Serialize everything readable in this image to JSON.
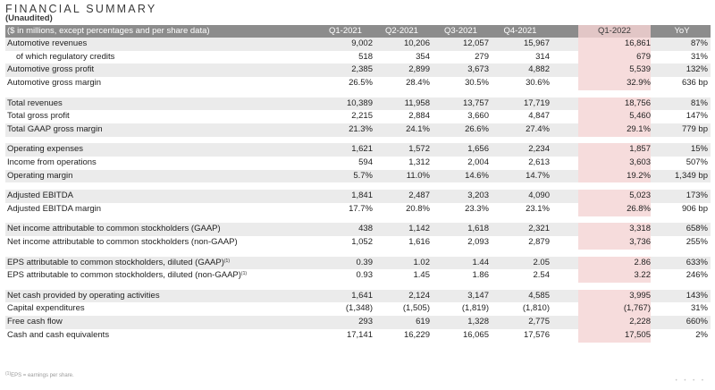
{
  "title": "FINANCIAL SUMMARY",
  "subtitle": "(Unaudited)",
  "header": {
    "label": "($ in millions, except percentages and per share data)",
    "columns": [
      "Q1-2021",
      "Q2-2021",
      "Q3-2021",
      "Q4-2021",
      "Q1-2022",
      "YoY"
    ]
  },
  "rows": [
    {
      "type": "data",
      "shade": true,
      "label": "Automotive revenues",
      "values": [
        "9,002",
        "10,206",
        "12,057",
        "15,967",
        "16,861",
        "87%"
      ]
    },
    {
      "type": "data",
      "shade": false,
      "indent": true,
      "label": "of which regulatory credits",
      "values": [
        "518",
        "354",
        "279",
        "314",
        "679",
        "31%"
      ]
    },
    {
      "type": "data",
      "shade": true,
      "label": "Automotive gross profit",
      "values": [
        "2,385",
        "2,899",
        "3,673",
        "4,882",
        "5,539",
        "132%"
      ]
    },
    {
      "type": "data",
      "shade": false,
      "label": "Automotive gross margin",
      "values": [
        "26.5%",
        "28.4%",
        "30.5%",
        "30.6%",
        "32.9%",
        "636 bp"
      ]
    },
    {
      "type": "spacer"
    },
    {
      "type": "data",
      "shade": true,
      "label": "Total revenues",
      "values": [
        "10,389",
        "11,958",
        "13,757",
        "17,719",
        "18,756",
        "81%"
      ]
    },
    {
      "type": "data",
      "shade": false,
      "label": "Total gross profit",
      "values": [
        "2,215",
        "2,884",
        "3,660",
        "4,847",
        "5,460",
        "147%"
      ]
    },
    {
      "type": "data",
      "shade": true,
      "label": "Total GAAP gross margin",
      "values": [
        "21.3%",
        "24.1%",
        "26.6%",
        "27.4%",
        "29.1%",
        "779 bp"
      ]
    },
    {
      "type": "spacer"
    },
    {
      "type": "data",
      "shade": true,
      "label": "Operating expenses",
      "values": [
        "1,621",
        "1,572",
        "1,656",
        "2,234",
        "1,857",
        "15%"
      ]
    },
    {
      "type": "data",
      "shade": false,
      "label": "Income from operations",
      "values": [
        "594",
        "1,312",
        "2,004",
        "2,613",
        "3,603",
        "507%"
      ]
    },
    {
      "type": "data",
      "shade": true,
      "label": "Operating margin",
      "values": [
        "5.7%",
        "11.0%",
        "14.6%",
        "14.7%",
        "19.2%",
        "1,349 bp"
      ]
    },
    {
      "type": "spacer"
    },
    {
      "type": "data",
      "shade": true,
      "label": "Adjusted EBITDA",
      "values": [
        "1,841",
        "2,487",
        "3,203",
        "4,090",
        "5,023",
        "173%"
      ]
    },
    {
      "type": "data",
      "shade": false,
      "label": "Adjusted EBITDA margin",
      "values": [
        "17.7%",
        "20.8%",
        "23.3%",
        "23.1%",
        "26.8%",
        "906 bp"
      ]
    },
    {
      "type": "spacer"
    },
    {
      "type": "data",
      "shade": true,
      "label": "Net income attributable to common stockholders (GAAP)",
      "values": [
        "438",
        "1,142",
        "1,618",
        "2,321",
        "3,318",
        "658%"
      ]
    },
    {
      "type": "data",
      "shade": false,
      "label": "Net income attributable to common stockholders (non-GAAP)",
      "values": [
        "1,052",
        "1,616",
        "2,093",
        "2,879",
        "3,736",
        "255%"
      ]
    },
    {
      "type": "spacer"
    },
    {
      "type": "data",
      "shade": true,
      "label": "EPS attributable to common stockholders, diluted (GAAP)",
      "sup": "(1)",
      "values": [
        "0.39",
        "1.02",
        "1.44",
        "2.05",
        "2.86",
        "633%"
      ]
    },
    {
      "type": "data",
      "shade": false,
      "label": "EPS attributable to common stockholders, diluted (non-GAAP)",
      "sup": "(1)",
      "values": [
        "0.93",
        "1.45",
        "1.86",
        "2.54",
        "3.22",
        "246%"
      ]
    },
    {
      "type": "spacer"
    },
    {
      "type": "data",
      "shade": true,
      "label": "Net cash provided by operating activities",
      "values": [
        "1,641",
        "2,124",
        "3,147",
        "4,585",
        "3,995",
        "143%"
      ]
    },
    {
      "type": "data",
      "shade": false,
      "label": "Capital expenditures",
      "values": [
        "(1,348)",
        "(1,505)",
        "(1,819)",
        "(1,810)",
        "(1,767)",
        "31%"
      ]
    },
    {
      "type": "data",
      "shade": true,
      "label": "Free cash flow",
      "values": [
        "293",
        "619",
        "1,328",
        "2,775",
        "2,228",
        "660%"
      ]
    },
    {
      "type": "data",
      "shade": false,
      "label": "Cash and cash equivalents",
      "values": [
        "17,141",
        "16,229",
        "16,065",
        "17,576",
        "17,505",
        "2%"
      ]
    }
  ],
  "footnote": {
    "sup": "(1)",
    "text": "EPS = earnings per share."
  },
  "brand_dots": "• • • •",
  "colors": {
    "header_bg": "#8c8c8c",
    "row_shade": "#ebebeb",
    "highlight": "#f6dcdc",
    "highlight_header": "#e2c6c6"
  }
}
